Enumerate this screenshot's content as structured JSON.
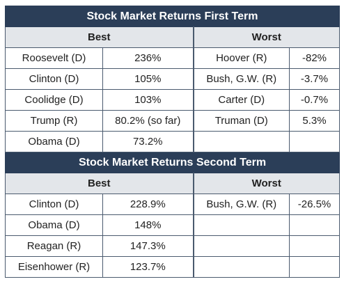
{
  "first_term": {
    "title": "Stock Market Returns First Term",
    "best_label": "Best",
    "worst_label": "Worst",
    "rows": [
      {
        "best_name": "Roosevelt (D)",
        "best_value": "236%",
        "worst_name": "Hoover (R)",
        "worst_value": "-82%"
      },
      {
        "best_name": "Clinton (D)",
        "best_value": "105%",
        "worst_name": "Bush, G.W. (R)",
        "worst_value": "-3.7%"
      },
      {
        "best_name": "Coolidge (D)",
        "best_value": "103%",
        "worst_name": "Carter (D)",
        "worst_value": "-0.7%"
      },
      {
        "best_name": "Trump (R)",
        "best_value": "80.2% (so far)",
        "worst_name": "Truman (D)",
        "worst_value": "5.3%"
      },
      {
        "best_name": "Obama (D)",
        "best_value": "73.2%",
        "worst_name": "",
        "worst_value": ""
      }
    ]
  },
  "second_term": {
    "title": "Stock Market Returns Second Term",
    "best_label": "Best",
    "worst_label": "Worst",
    "rows": [
      {
        "best_name": "Clinton (D)",
        "best_value": "228.9%",
        "worst_name": "Bush, G.W. (R)",
        "worst_value": "-26.5%"
      },
      {
        "best_name": "Obama (D)",
        "best_value": "148%",
        "worst_name": "",
        "worst_value": ""
      },
      {
        "best_name": "Reagan (R)",
        "best_value": "147.3%",
        "worst_name": "",
        "worst_value": ""
      },
      {
        "best_name": "Eisenhower (R)",
        "best_value": "123.7%",
        "worst_name": "",
        "worst_value": ""
      }
    ]
  },
  "colors": {
    "title_bg": "#2b3e58",
    "subheader_bg": "#e3e6ea",
    "border": "#4a5a6e"
  }
}
